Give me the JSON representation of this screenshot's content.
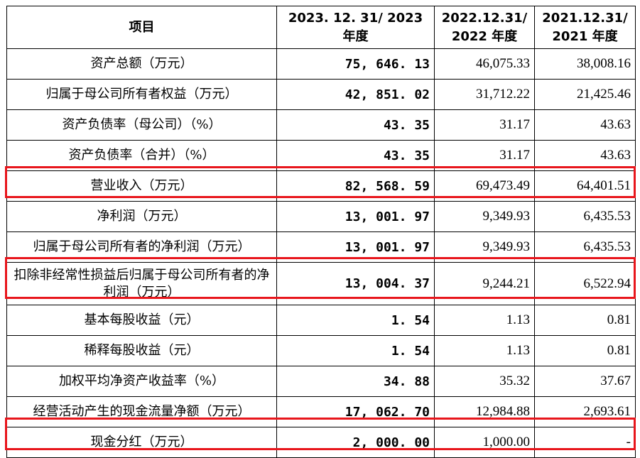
{
  "header": {
    "col_item": "项目",
    "col_2023": "2023. 12. 31/ 2023 年度",
    "col_2022": "2022.12.31/ 2022 年度",
    "col_2021": "2021.12.31/ 2021 年度"
  },
  "rows": [
    {
      "label": "资产总额（万元）",
      "v2023": "75, 646. 13",
      "v2022": "46,075.33",
      "v2021": "38,008.16"
    },
    {
      "label": "归属于母公司所有者权益（万元）",
      "v2023": "42, 851. 02",
      "v2022": "31,712.22",
      "v2021": "21,425.46"
    },
    {
      "label": "资产负债率（母公司）（%）",
      "v2023": "43. 35",
      "v2022": "31.17",
      "v2021": "43.63"
    },
    {
      "label": "资产负债率（合并）（%）",
      "v2023": "43. 35",
      "v2022": "31.17",
      "v2021": "43.63"
    },
    {
      "label": "营业收入（万元）",
      "v2023": "82, 568. 59",
      "v2022": "69,473.49",
      "v2021": "64,401.51",
      "highlighted": true
    },
    {
      "label": "净利润（万元）",
      "v2023": "13, 001. 97",
      "v2022": "9,349.93",
      "v2021": "6,435.53"
    },
    {
      "label": "归属于母公司所有者的净利润（万元）",
      "v2023": "13, 001. 97",
      "v2022": "9,349.93",
      "v2021": "6,435.53"
    },
    {
      "label": "扣除非经常性损益后归属于母公司所有者的净利润（万元）",
      "v2023": "13, 004. 37",
      "v2022": "9,244.21",
      "v2021": "6,522.94",
      "highlighted": true
    },
    {
      "label": "基本每股收益（元）",
      "v2023": "1. 54",
      "v2022": "1.13",
      "v2021": "0.81"
    },
    {
      "label": "稀释每股收益（元）",
      "v2023": "1. 54",
      "v2022": "1.13",
      "v2021": "0.81"
    },
    {
      "label": "加权平均净资产收益率（%）",
      "v2023": "34. 88",
      "v2022": "35.32",
      "v2021": "37.67"
    },
    {
      "label": "经营活动产生的现金流量净额（万元）",
      "v2023": "17, 062. 70",
      "v2022": "12,984.88",
      "v2021": "2,693.61"
    },
    {
      "label": "现金分红（万元）",
      "v2023": "2, 000. 00",
      "v2022": "1,000.00",
      "v2021": "-",
      "highlighted": true
    }
  ],
  "colors": {
    "highlight_border": "#e8161c",
    "text": "#000000",
    "background": "#ffffff"
  }
}
